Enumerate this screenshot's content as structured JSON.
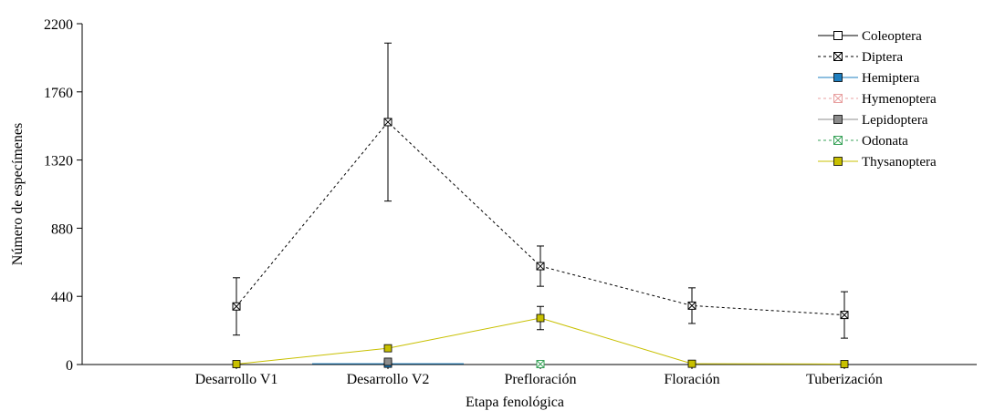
{
  "chart_data": {
    "type": "line",
    "title": "",
    "xlabel": "Etapa fenológica",
    "ylabel": "Número de especímenes",
    "categories": [
      "Desarrollo V1",
      "Desarrollo V2",
      "Prefloración",
      "Floración",
      "Tuberización"
    ],
    "ylim": [
      0,
      2200
    ],
    "yticks": [
      0,
      440,
      880,
      1320,
      1760,
      2200
    ],
    "ytick_labels": [
      "0",
      "440",
      "880",
      "1320",
      "1760",
      "2200"
    ],
    "grid": false,
    "legend_position": "top-right",
    "series": [
      {
        "name": "Coleoptera",
        "color": "#000000",
        "dash": "solid",
        "marker": "square-open",
        "values": [
          null,
          null,
          null,
          null,
          null
        ],
        "err": [
          null,
          null,
          null,
          null,
          null
        ]
      },
      {
        "name": "Diptera",
        "color": "#000000",
        "dash": "dashed",
        "marker": "square-x",
        "values": [
          375,
          1565,
          635,
          380,
          320
        ],
        "err": [
          185,
          510,
          130,
          115,
          150
        ]
      },
      {
        "name": "Hemiptera",
        "color": "#1e7fc0",
        "dash": "solid",
        "marker": "square-filled",
        "values": [
          null,
          5,
          null,
          null,
          null
        ],
        "err": [
          null,
          null,
          null,
          null,
          null
        ]
      },
      {
        "name": "Hymenoptera",
        "color": "#e8a0a0",
        "dash": "dashed",
        "marker": "square-x",
        "values": [
          null,
          null,
          null,
          null,
          null
        ],
        "err": [
          null,
          null,
          null,
          null,
          null
        ]
      },
      {
        "name": "Lepidoptera",
        "color": "#8c8c8c",
        "dash": "solid",
        "marker": "square-filled",
        "values": [
          null,
          18,
          null,
          null,
          null
        ],
        "err": [
          null,
          null,
          null,
          null,
          null
        ]
      },
      {
        "name": "Odonata",
        "color": "#3aa35a",
        "dash": "dashed",
        "marker": "square-x",
        "values": [
          null,
          null,
          3,
          null,
          null
        ],
        "err": [
          null,
          null,
          null,
          null,
          null
        ]
      },
      {
        "name": "Thysanoptera",
        "color": "#c8c000",
        "dash": "solid",
        "marker": "square-filled",
        "values": [
          3,
          105,
          300,
          5,
          3
        ],
        "err": [
          null,
          null,
          75,
          null,
          null
        ]
      }
    ]
  }
}
